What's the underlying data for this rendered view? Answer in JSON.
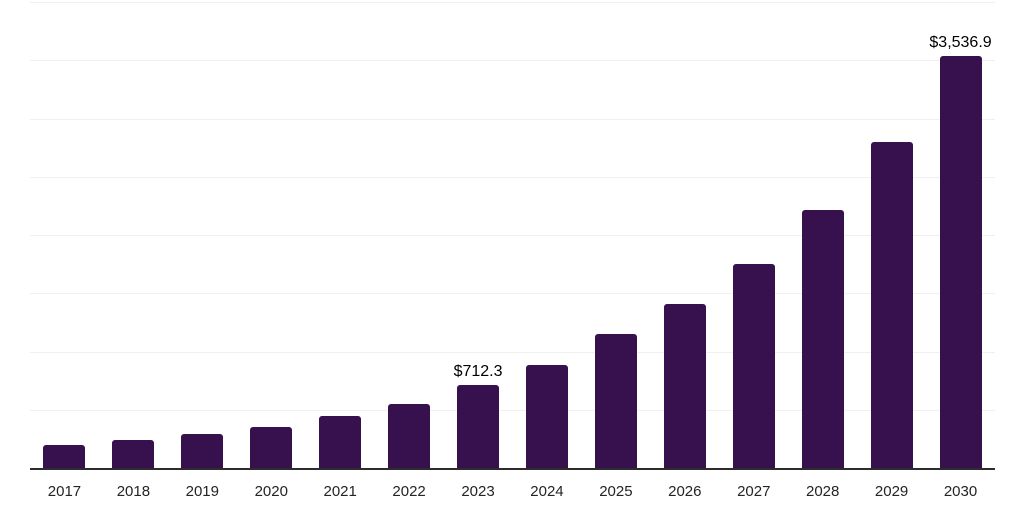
{
  "chart": {
    "background_color": "#ffffff",
    "bar_color": "#36114E",
    "gridline_color": "#f0f0f1",
    "axis_line_color": "#2d2d2d",
    "data_label_color": "#000000",
    "tick_label_color": "#242424"
  },
  "chart_data": {
    "type": "bar",
    "categories": [
      "2017",
      "2018",
      "2019",
      "2020",
      "2021",
      "2022",
      "2023",
      "2024",
      "2025",
      "2026",
      "2027",
      "2028",
      "2029",
      "2030"
    ],
    "values": [
      197,
      237,
      296,
      354,
      450,
      550,
      712.3,
      886,
      1146,
      1404,
      1754,
      2214,
      2801,
      3536.9
    ],
    "data_labels": {
      "2023": "$712.3",
      "2030": "$3,536.9"
    },
    "title": "",
    "xlabel": "",
    "ylabel": "",
    "ylim": [
      0,
      4000
    ],
    "gridline_step": 500,
    "grid": true,
    "legend": false,
    "currency_prefix": "$"
  }
}
